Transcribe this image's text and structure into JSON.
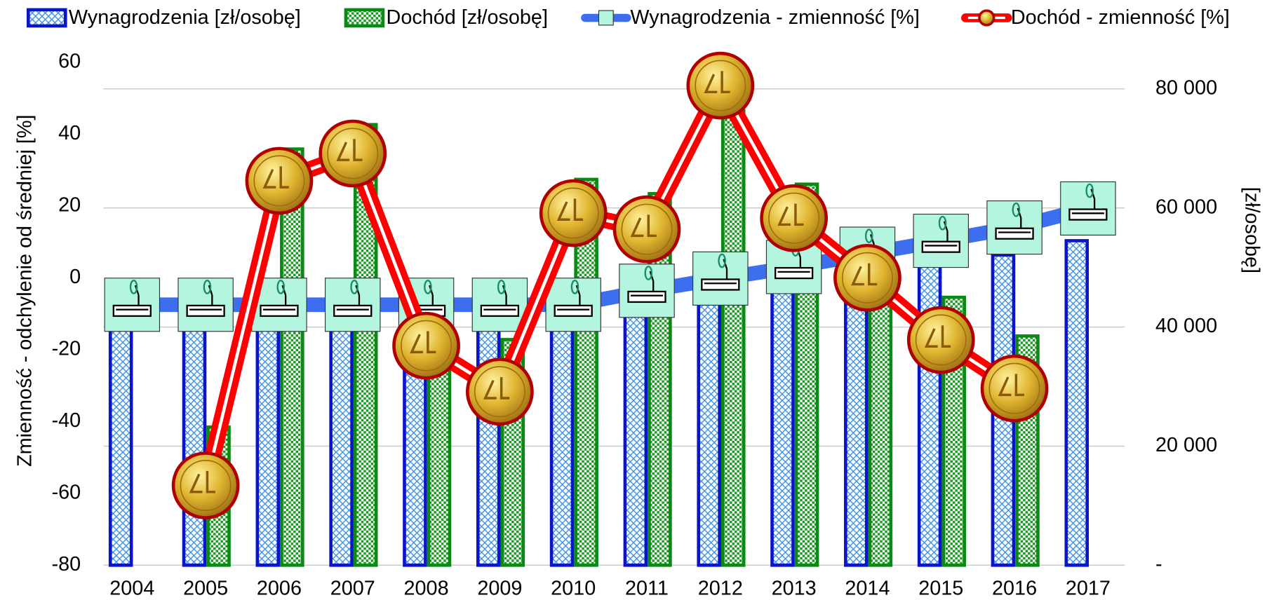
{
  "chart_data": {
    "type": "bar",
    "y_label": "Zmienność - odchylenie od średniej [%]",
    "y2_label": "[zł/osobę]",
    "categories": [
      "2004",
      "2005",
      "2006",
      "2007",
      "2008",
      "2009",
      "2010",
      "2011",
      "2012",
      "2013",
      "2014",
      "2015",
      "2016",
      "2017"
    ],
    "series": [
      {
        "name": "Wynagrodzenia [zł/osobę]",
        "type": "bar",
        "axis": "y2",
        "color": "#0a14c8",
        "values": [
          42300,
          42300,
          42300,
          42300,
          42300,
          42300,
          42300,
          44050,
          45600,
          47100,
          48800,
          50400,
          52100,
          54500
        ]
      },
      {
        "name": "Dochód [zł/osobę]",
        "type": "bar",
        "axis": "y2",
        "color": "#0a8a14",
        "values": [
          null,
          23200,
          69900,
          74000,
          44600,
          37900,
          64800,
          62400,
          76300,
          64000,
          47000,
          45000,
          38500,
          null
        ]
      },
      {
        "name": "Wynagrodzenia - zmienność [%]",
        "type": "line",
        "color": "#3d6ef0",
        "values": [
          -7.5,
          -7.5,
          -7.5,
          -7.5,
          -7.5,
          -7.5,
          -7.5,
          -3.6,
          -0.2,
          3,
          6.7,
          10.3,
          14,
          19.3
        ]
      },
      {
        "name": "Dochód - zmienność [%]",
        "type": "line",
        "color": "#ff0000",
        "values": [
          null,
          -57.8,
          27,
          34.6,
          -18.9,
          -31.7,
          18,
          13.5,
          53.5,
          16.6,
          0,
          -17.3,
          -30.8,
          null
        ]
      }
    ],
    "ylim": [
      -80,
      60
    ],
    "yticks": [
      -80,
      -60,
      -40,
      -20,
      0,
      20,
      40,
      60
    ],
    "y2lim": [
      0,
      84475
    ],
    "y2ticks": [
      {
        "value": 0,
        "label": "-"
      },
      {
        "value": 20000,
        "label": "20 000"
      },
      {
        "value": 40000,
        "label": "40 000"
      },
      {
        "value": 60000,
        "label": "60 000"
      },
      {
        "value": 80000,
        "label": "80 000"
      }
    ],
    "grid": true,
    "legend": "top"
  }
}
